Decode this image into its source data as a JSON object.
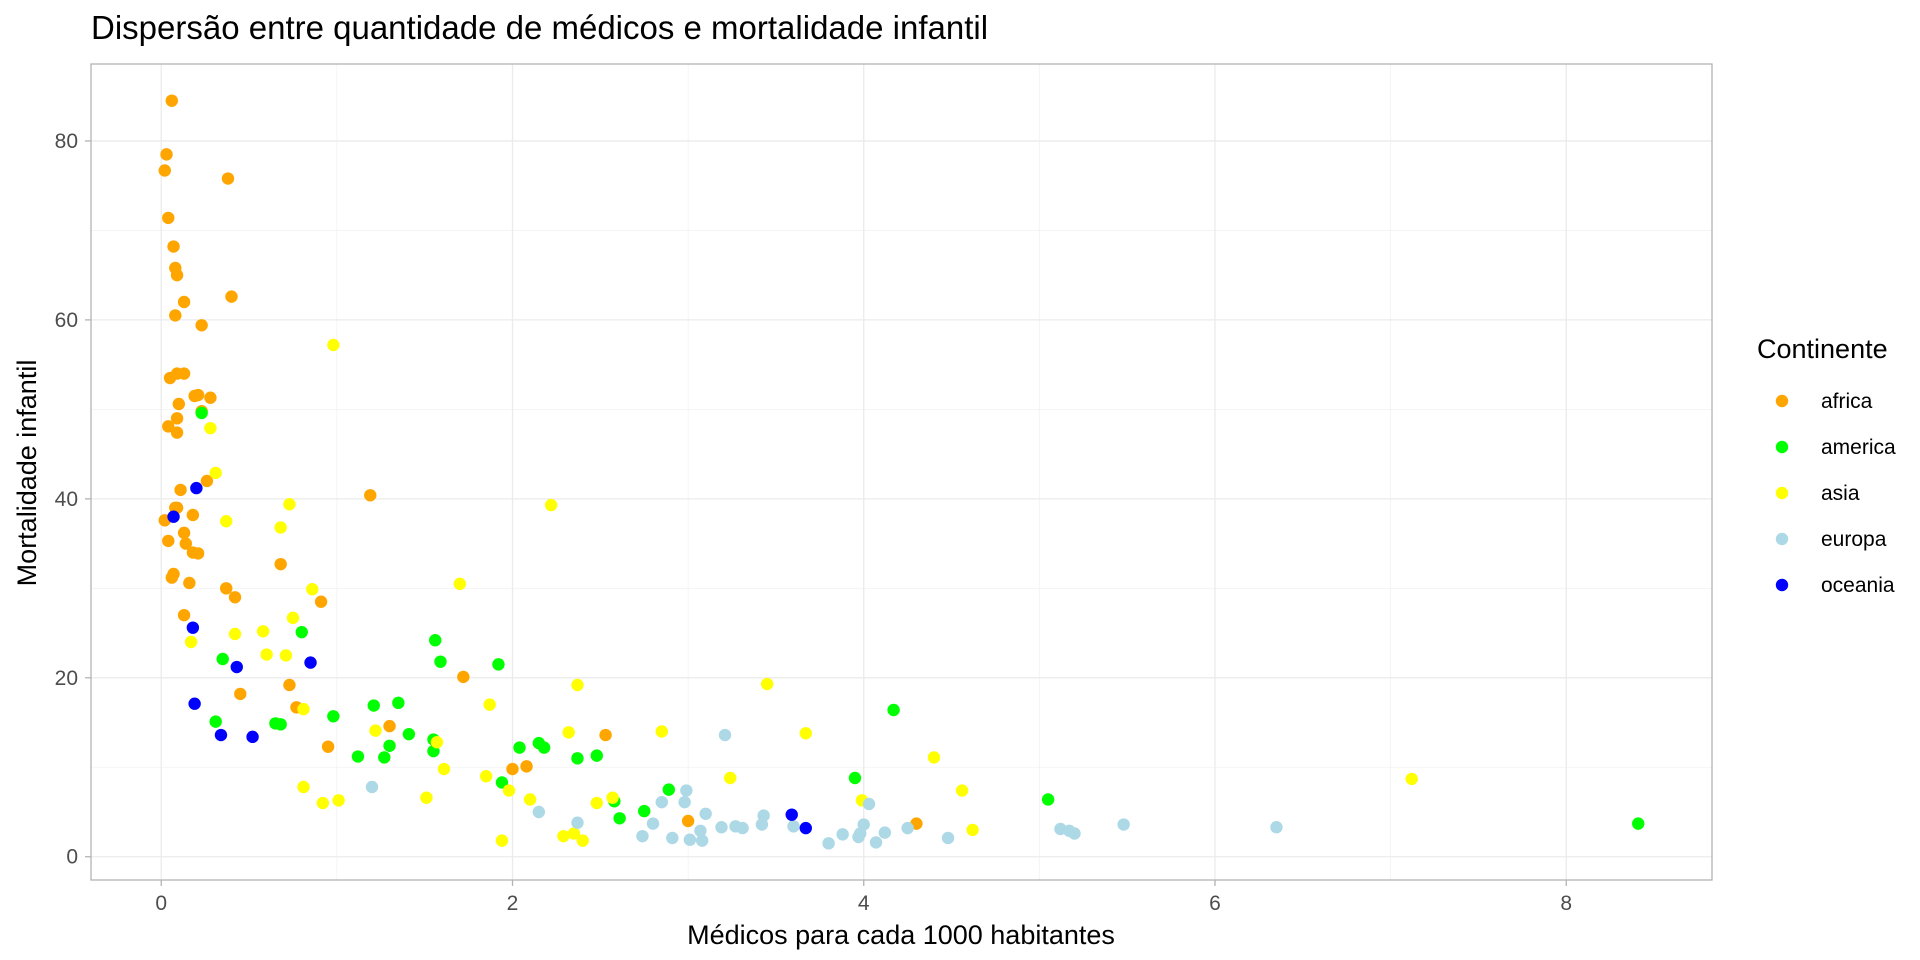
{
  "chart_data": {
    "type": "scatter",
    "title": "Dispersão entre quantidade de médicos e mortalidade infantil",
    "xlabel": "Médicos para cada 1000 habitantes",
    "ylabel": "Mortalidade infantil",
    "xlim": [
      -0.4,
      8.83
    ],
    "ylim": [
      -2.6,
      88.6
    ],
    "x_ticks": [
      "0",
      "2",
      "4",
      "6",
      "8"
    ],
    "x_tick_values": [
      0,
      2,
      4,
      6,
      8
    ],
    "y_ticks": [
      "0",
      "20",
      "40",
      "60",
      "80"
    ],
    "y_tick_values": [
      0,
      20,
      40,
      60,
      80
    ],
    "grid": true,
    "legend": {
      "title": "Continente",
      "position": "right"
    },
    "series": [
      {
        "name": "africa",
        "color": "#FFA500",
        "points": [
          [
            0.06,
            84.5
          ],
          [
            0.03,
            78.5
          ],
          [
            0.02,
            76.7
          ],
          [
            0.38,
            75.8
          ],
          [
            0.04,
            71.4
          ],
          [
            0.07,
            68.2
          ],
          [
            0.08,
            65.8
          ],
          [
            0.09,
            65.0
          ],
          [
            0.4,
            62.6
          ],
          [
            0.13,
            62.0
          ],
          [
            0.08,
            60.5
          ],
          [
            0.23,
            59.4
          ],
          [
            0.05,
            53.5
          ],
          [
            0.09,
            54.0
          ],
          [
            0.13,
            54.0
          ],
          [
            0.19,
            51.5
          ],
          [
            0.21,
            51.6
          ],
          [
            0.28,
            51.3
          ],
          [
            0.1,
            50.6
          ],
          [
            0.23,
            49.8
          ],
          [
            0.09,
            49.0
          ],
          [
            0.04,
            48.1
          ],
          [
            0.09,
            47.4
          ],
          [
            0.26,
            42.0
          ],
          [
            0.11,
            41.0
          ],
          [
            0.09,
            39.0
          ],
          [
            0.08,
            39.0
          ],
          [
            0.02,
            37.6
          ],
          [
            0.18,
            38.2
          ],
          [
            0.13,
            36.2
          ],
          [
            0.04,
            35.3
          ],
          [
            0.14,
            35.0
          ],
          [
            0.18,
            34.0
          ],
          [
            0.21,
            33.9
          ],
          [
            0.07,
            31.6
          ],
          [
            0.06,
            31.2
          ],
          [
            0.16,
            30.6
          ],
          [
            0.37,
            30.0
          ],
          [
            0.42,
            29.0
          ],
          [
            0.68,
            32.7
          ],
          [
            0.91,
            28.5
          ],
          [
            1.19,
            40.4
          ],
          [
            0.13,
            27.0
          ],
          [
            0.73,
            19.2
          ],
          [
            0.45,
            18.2
          ],
          [
            0.77,
            16.7
          ],
          [
            1.72,
            20.1
          ],
          [
            2.0,
            9.8
          ],
          [
            2.08,
            10.1
          ],
          [
            2.53,
            13.6
          ],
          [
            0.95,
            12.3
          ],
          [
            1.3,
            14.6
          ],
          [
            3.0,
            4.0
          ],
          [
            4.3,
            3.7
          ]
        ]
      },
      {
        "name": "america",
        "color": "#00FF00",
        "points": [
          [
            0.23,
            49.6
          ],
          [
            0.8,
            25.1
          ],
          [
            0.35,
            22.1
          ],
          [
            1.56,
            24.2
          ],
          [
            1.59,
            21.8
          ],
          [
            1.92,
            21.5
          ],
          [
            0.31,
            15.1
          ],
          [
            0.65,
            14.9
          ],
          [
            0.68,
            14.8
          ],
          [
            0.98,
            15.7
          ],
          [
            1.21,
            16.9
          ],
          [
            1.35,
            17.2
          ],
          [
            1.41,
            13.7
          ],
          [
            1.3,
            12.4
          ],
          [
            1.12,
            11.2
          ],
          [
            1.27,
            11.1
          ],
          [
            1.55,
            13.1
          ],
          [
            1.55,
            11.8
          ],
          [
            1.94,
            8.3
          ],
          [
            2.04,
            12.2
          ],
          [
            2.15,
            12.7
          ],
          [
            2.18,
            12.2
          ],
          [
            2.37,
            11.0
          ],
          [
            2.48,
            11.3
          ],
          [
            2.58,
            6.2
          ],
          [
            2.61,
            4.3
          ],
          [
            2.75,
            5.1
          ],
          [
            2.89,
            7.5
          ],
          [
            3.95,
            8.8
          ],
          [
            4.17,
            16.4
          ],
          [
            5.05,
            6.4
          ],
          [
            8.41,
            3.7
          ]
        ]
      },
      {
        "name": "asia",
        "color": "#FFFF00",
        "points": [
          [
            0.98,
            57.2
          ],
          [
            0.28,
            47.9
          ],
          [
            0.31,
            42.9
          ],
          [
            0.73,
            39.4
          ],
          [
            0.37,
            37.5
          ],
          [
            0.68,
            36.8
          ],
          [
            2.22,
            39.3
          ],
          [
            1.7,
            30.5
          ],
          [
            0.86,
            29.9
          ],
          [
            0.75,
            26.7
          ],
          [
            0.42,
            24.9
          ],
          [
            0.58,
            25.2
          ],
          [
            0.17,
            24.0
          ],
          [
            0.6,
            22.6
          ],
          [
            0.71,
            22.5
          ],
          [
            0.81,
            16.5
          ],
          [
            2.37,
            19.2
          ],
          [
            3.45,
            19.3
          ],
          [
            1.87,
            17.0
          ],
          [
            1.22,
            14.1
          ],
          [
            2.32,
            13.9
          ],
          [
            2.85,
            14.0
          ],
          [
            3.67,
            13.8
          ],
          [
            1.57,
            12.8
          ],
          [
            1.61,
            9.8
          ],
          [
            2.1,
            6.4
          ],
          [
            3.24,
            8.8
          ],
          [
            4.4,
            11.1
          ],
          [
            4.56,
            7.4
          ],
          [
            0.81,
            7.8
          ],
          [
            0.92,
            6.0
          ],
          [
            1.01,
            6.3
          ],
          [
            1.51,
            6.6
          ],
          [
            1.85,
            9.0
          ],
          [
            1.98,
            7.4
          ],
          [
            2.29,
            2.3
          ],
          [
            2.35,
            2.6
          ],
          [
            2.4,
            1.8
          ],
          [
            1.94,
            1.8
          ],
          [
            2.48,
            6.0
          ],
          [
            2.57,
            6.6
          ],
          [
            3.99,
            6.3
          ],
          [
            4.62,
            3.0
          ],
          [
            7.12,
            8.7
          ]
        ]
      },
      {
        "name": "europa",
        "color": "#ADD8E6",
        "points": [
          [
            1.2,
            7.8
          ],
          [
            2.15,
            5.0
          ],
          [
            2.37,
            3.8
          ],
          [
            2.74,
            2.3
          ],
          [
            2.8,
            3.7
          ],
          [
            2.85,
            6.1
          ],
          [
            2.91,
            2.1
          ],
          [
            2.98,
            6.1
          ],
          [
            2.99,
            7.4
          ],
          [
            3.01,
            1.9
          ],
          [
            3.07,
            2.9
          ],
          [
            3.08,
            1.8
          ],
          [
            3.1,
            4.8
          ],
          [
            3.19,
            3.3
          ],
          [
            3.21,
            13.6
          ],
          [
            3.27,
            3.4
          ],
          [
            3.31,
            3.2
          ],
          [
            3.42,
            3.6
          ],
          [
            3.43,
            4.6
          ],
          [
            3.6,
            3.4
          ],
          [
            3.8,
            1.5
          ],
          [
            3.88,
            2.5
          ],
          [
            3.97,
            2.2
          ],
          [
            3.98,
            2.6
          ],
          [
            4.0,
            3.6
          ],
          [
            4.03,
            5.9
          ],
          [
            4.07,
            1.6
          ],
          [
            4.12,
            2.7
          ],
          [
            4.25,
            3.2
          ],
          [
            4.48,
            2.1
          ],
          [
            5.12,
            3.1
          ],
          [
            5.17,
            2.9
          ],
          [
            5.2,
            2.6
          ],
          [
            5.48,
            3.6
          ],
          [
            6.35,
            3.3
          ]
        ]
      },
      {
        "name": "oceania",
        "color": "#0000FF",
        "points": [
          [
            0.2,
            41.2
          ],
          [
            0.07,
            38.0
          ],
          [
            0.18,
            25.6
          ],
          [
            0.85,
            21.7
          ],
          [
            0.43,
            21.2
          ],
          [
            0.19,
            17.1
          ],
          [
            0.34,
            13.6
          ],
          [
            0.52,
            13.4
          ],
          [
            3.59,
            4.7
          ],
          [
            3.67,
            3.2
          ]
        ]
      }
    ]
  }
}
